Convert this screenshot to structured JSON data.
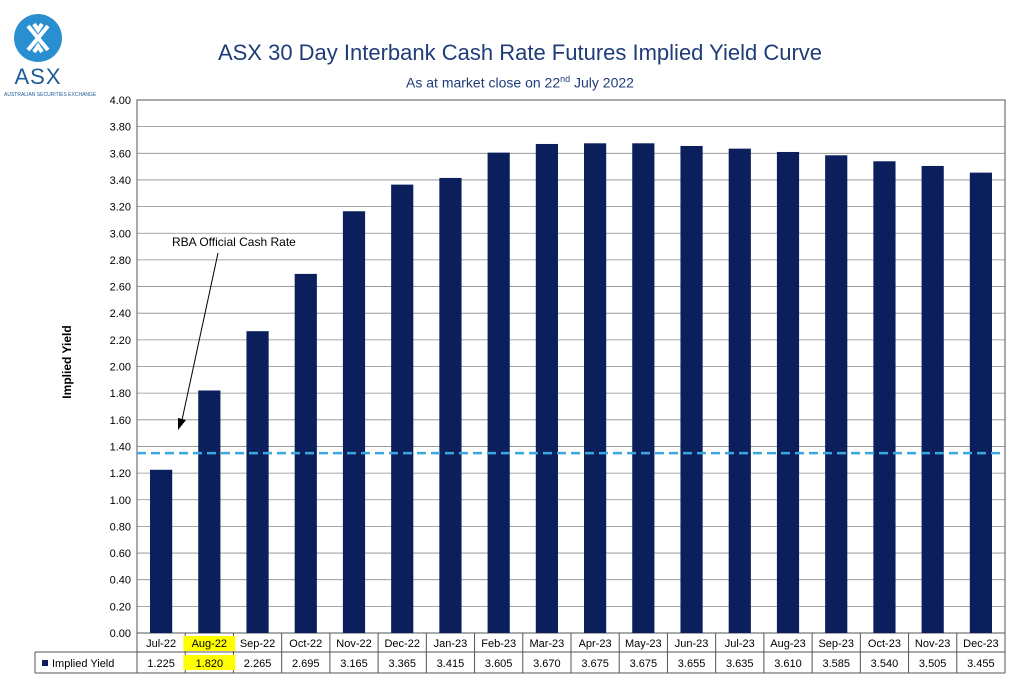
{
  "logo": {
    "text": "ASX",
    "subtext": "AUSTRALIAN SECURITIES EXCHANGE"
  },
  "title": "ASX 30 Day Interbank Cash Rate Futures Implied Yield Curve",
  "subtitle": {
    "prefix": "As at market close on 22",
    "sup": "nd",
    "suffix": " July 2022"
  },
  "annotation": "RBA Official Cash Rate",
  "colors": {
    "bar": "#0a1f5c",
    "dashed_line": "#3aa8de",
    "highlight": "#ffff00",
    "grid": "#8a8a8a"
  },
  "chart_data": {
    "type": "bar",
    "categories": [
      "Jul-22",
      "Aug-22",
      "Sep-22",
      "Oct-22",
      "Nov-22",
      "Dec-22",
      "Jan-23",
      "Feb-23",
      "Mar-23",
      "Apr-23",
      "May-23",
      "Jun-23",
      "Jul-23",
      "Aug-23",
      "Sep-23",
      "Oct-23",
      "Nov-23",
      "Dec-23"
    ],
    "series": [
      {
        "name": "Implied Yield",
        "values": [
          1.225,
          1.82,
          2.265,
          2.695,
          3.165,
          3.365,
          3.415,
          3.605,
          3.67,
          3.675,
          3.675,
          3.655,
          3.635,
          3.61,
          3.585,
          3.54,
          3.505,
          3.455
        ],
        "labels": [
          "1.225",
          "1.820",
          "2.265",
          "2.695",
          "3.165",
          "3.365",
          "3.415",
          "3.605",
          "3.670",
          "3.675",
          "3.675",
          "3.655",
          "3.635",
          "3.610",
          "3.585",
          "3.540",
          "3.505",
          "3.455"
        ]
      }
    ],
    "reference_line": {
      "value": 1.35,
      "style": "dashed"
    },
    "highlighted_category": "Aug-22",
    "ylabel": "Implied Yield",
    "ylim": [
      0,
      4.0
    ],
    "yticks": [
      "0.00",
      "0.20",
      "0.40",
      "0.60",
      "0.80",
      "1.00",
      "1.20",
      "1.40",
      "1.60",
      "1.80",
      "2.00",
      "2.20",
      "2.40",
      "2.60",
      "2.80",
      "3.00",
      "3.20",
      "3.40",
      "3.60",
      "3.80",
      "4.00"
    ],
    "grid": true,
    "legend": "data-table"
  }
}
